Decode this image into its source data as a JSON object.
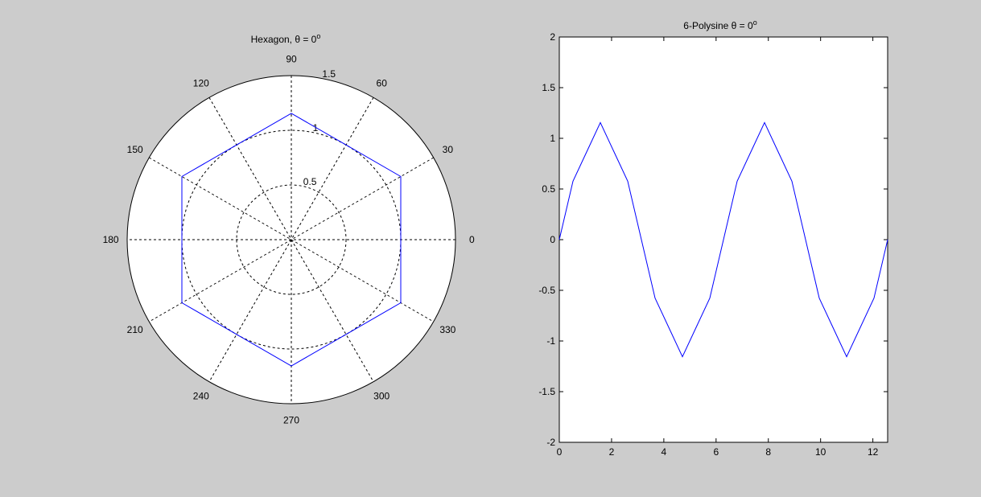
{
  "colors": {
    "figure_background": "#cccccc",
    "axes_background": "#ffffff",
    "line": "#0000ff",
    "grid": "#000000"
  },
  "chart_data": [
    {
      "type": "polar",
      "title": "Hexagon, θ = 0",
      "title_superscript": "o",
      "rlim": [
        0,
        1.5
      ],
      "r_ticks": [
        0.5,
        1,
        1.5
      ],
      "r_tick_labels": [
        "0.5",
        "1",
        "1.5"
      ],
      "theta_ticks_deg": [
        0,
        30,
        60,
        90,
        120,
        150,
        180,
        210,
        240,
        270,
        300,
        330
      ],
      "theta_tick_labels": [
        "0",
        "30",
        "60",
        "90",
        "120",
        "150",
        "180",
        "210",
        "240",
        "270",
        "300",
        "330"
      ],
      "grid": true,
      "series": [
        {
          "theta_deg": [
            0,
            30,
            60,
            90,
            120,
            150,
            180,
            210,
            240,
            270,
            300,
            330,
            360
          ],
          "r": [
            1.0,
            1.1547,
            1.0,
            1.1547,
            1.0,
            1.1547,
            1.0,
            1.1547,
            1.0,
            1.1547,
            1.0,
            1.1547,
            1.0
          ]
        }
      ]
    },
    {
      "type": "line",
      "title": "6-Polysine θ = 0",
      "title_superscript": "o",
      "xlim": [
        0,
        12.566
      ],
      "ylim": [
        -2,
        2
      ],
      "xticks": [
        0,
        2,
        4,
        6,
        8,
        10,
        12
      ],
      "yticks": [
        -2,
        -1.5,
        -1,
        -0.5,
        0,
        0.5,
        1,
        1.5,
        2
      ],
      "xtick_labels": [
        "0",
        "2",
        "4",
        "6",
        "8",
        "10",
        "12"
      ],
      "ytick_labels": [
        "-2",
        "-1.5",
        "-1",
        "-0.5",
        "0",
        "0.5",
        "1",
        "1.5",
        "2"
      ],
      "grid": false,
      "series": [
        {
          "x": [
            0,
            0.5236,
            1.0472,
            1.5708,
            2.0944,
            2.618,
            3.1416,
            3.6652,
            4.1888,
            4.7124,
            5.236,
            5.7596,
            6.2832,
            6.8068,
            7.3304,
            7.854,
            8.3776,
            8.9012,
            9.4248,
            9.9484,
            10.472,
            10.9956,
            11.5192,
            12.0428,
            12.5664
          ],
          "y": [
            0,
            0.577,
            0.866,
            1.155,
            0.866,
            0.577,
            0,
            -0.577,
            -0.866,
            -1.155,
            -0.866,
            -0.577,
            0,
            0.577,
            0.866,
            1.155,
            0.866,
            0.577,
            0,
            -0.577,
            -0.866,
            -1.155,
            -0.866,
            -0.577,
            0
          ]
        }
      ]
    }
  ]
}
